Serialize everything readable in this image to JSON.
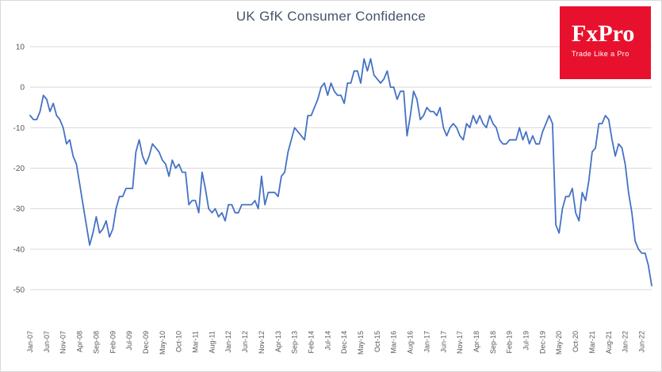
{
  "header": {
    "title": "UK GfK Consumer Confidence"
  },
  "logo": {
    "brand": "FxPro",
    "tagline": "Trade Like a Pro",
    "background": "#e8112d",
    "text_color": "#ffffff"
  },
  "chart_data": {
    "type": "line",
    "title": "UK GfK Consumer Confidence",
    "xlabel": "",
    "ylabel": "",
    "ylim": [
      -50,
      10
    ],
    "y_ticks": [
      10,
      0,
      -10,
      -20,
      -30,
      -40,
      -50
    ],
    "grid": "horizontal",
    "legend": "none",
    "grid_color": "#d9d9d9",
    "axis_label_color": "#595959",
    "x_start": "Jan-07",
    "x_frequency": "monthly",
    "x_tick_every": 5,
    "x_tick_labels": [
      "Jan-07",
      "Jun-07",
      "Nov-07",
      "Apr-08",
      "Sep-08",
      "Feb-09",
      "Jul-09",
      "Dec-09",
      "May-10",
      "Oct-10",
      "Mar-11",
      "Aug-11",
      "Jan-12",
      "Jun-12",
      "Nov-12",
      "Apr-13",
      "Sep-13",
      "Feb-14",
      "Jul-14",
      "Dec-14",
      "May-15",
      "Oct-15",
      "Mar-16",
      "Aug-16",
      "Jan-17",
      "Jun-17",
      "Nov-17",
      "Apr-18",
      "Sep-18",
      "Feb-19",
      "Jul-19",
      "Dec-19",
      "May-20",
      "Oct-20",
      "Mar-21",
      "Aug-21",
      "Jan-22",
      "Jun-22"
    ],
    "series": [
      {
        "name": "UK GfK Consumer Confidence",
        "color": "#4472c4",
        "values": [
          -7,
          -8,
          -8,
          -6,
          -2,
          -3,
          -6,
          -4,
          -7,
          -8,
          -10,
          -14,
          -13,
          -17,
          -19,
          -24,
          -29,
          -34,
          -39,
          -36,
          -32,
          -36,
          -35,
          -33,
          -37,
          -35,
          -30,
          -27,
          -27,
          -25,
          -25,
          -25,
          -16,
          -13,
          -17,
          -19,
          -17,
          -14,
          -15,
          -16,
          -18,
          -19,
          -22,
          -18,
          -20,
          -19,
          -21,
          -21,
          -29,
          -28,
          -28,
          -31,
          -21,
          -25,
          -30,
          -31,
          -30,
          -32,
          -31,
          -33,
          -29,
          -29,
          -31,
          -31,
          -29,
          -29,
          -29,
          -29,
          -28,
          -30,
          -22,
          -29,
          -26,
          -26,
          -26,
          -27,
          -22,
          -21,
          -16,
          -13,
          -10,
          -11,
          -12,
          -13,
          -7,
          -7,
          -5,
          -3,
          0,
          1,
          -2,
          1,
          -1,
          -2,
          -2,
          -4,
          1,
          1,
          4,
          4,
          1,
          7,
          4,
          7,
          3,
          2,
          1,
          2,
          4,
          0,
          0,
          -3,
          -1,
          -1,
          -12,
          -7,
          -1,
          -3,
          -8,
          -7,
          -5,
          -6,
          -6,
          -7,
          -5,
          -10,
          -12,
          -10,
          -9,
          -10,
          -12,
          -13,
          -9,
          -10,
          -7,
          -9,
          -7,
          -9,
          -10,
          -7,
          -9,
          -10,
          -13,
          -14,
          -14,
          -13,
          -13,
          -13,
          -10,
          -13,
          -11,
          -14,
          -12,
          -14,
          -14,
          -11,
          -9,
          -7,
          -9,
          -34,
          -36,
          -30,
          -27,
          -27,
          -25,
          -31,
          -33,
          -26,
          -28,
          -23,
          -16,
          -15,
          -9,
          -9,
          -7,
          -8,
          -13,
          -17,
          -14,
          -15,
          -19,
          -26,
          -31,
          -38,
          -40,
          -41,
          -41,
          -44,
          -49
        ]
      }
    ]
  }
}
